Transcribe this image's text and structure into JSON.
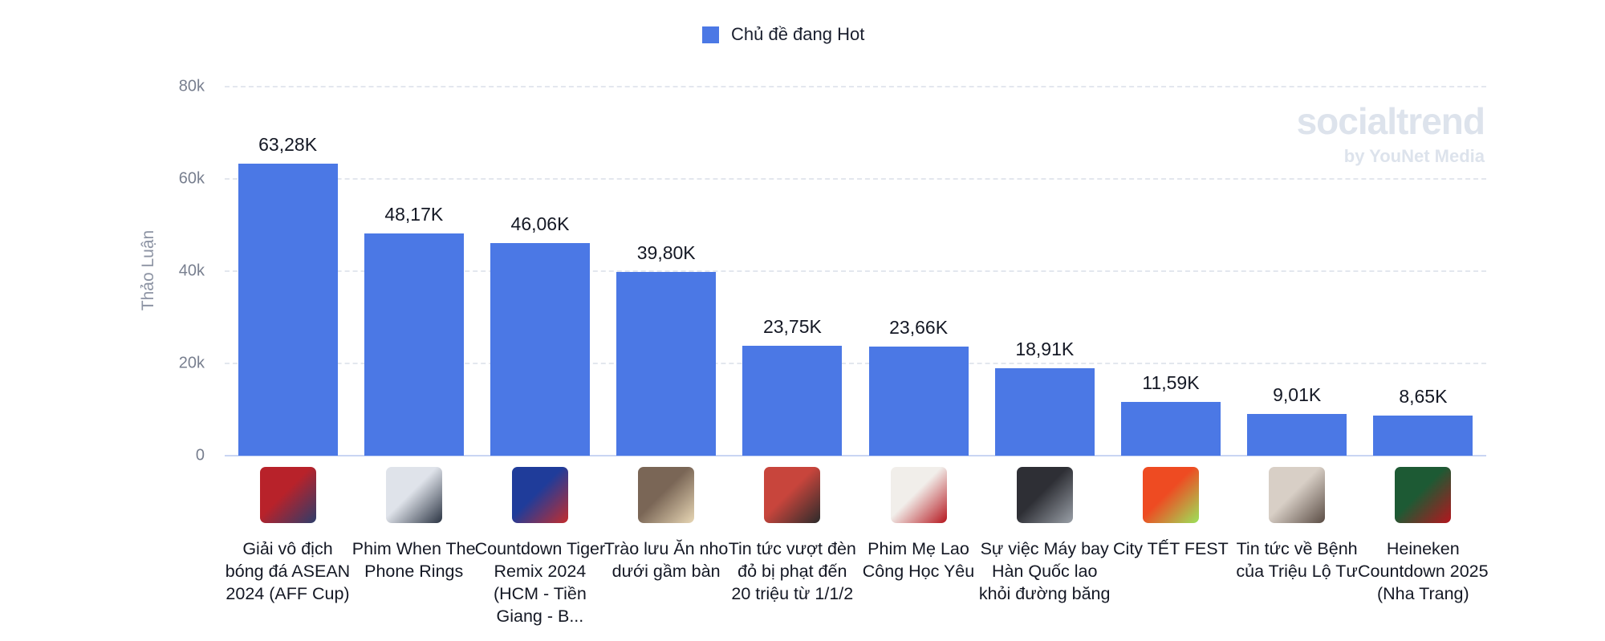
{
  "legend": {
    "label": "Chủ đề đang Hot",
    "color": "#4b78e5"
  },
  "watermark": {
    "brand": "socialtrend",
    "sub": "by YouNet Media"
  },
  "axis": {
    "y_title": "Thảo Luận",
    "ticks": [
      {
        "label": "80k",
        "value": 80000
      },
      {
        "label": "60k",
        "value": 60000
      },
      {
        "label": "40k",
        "value": 40000
      },
      {
        "label": "20k",
        "value": 20000
      },
      {
        "label": "0",
        "value": 0
      }
    ]
  },
  "bars": [
    {
      "label": "Giải vô địch bóng đá ASEAN 2024 (AFF Cup)",
      "value_label": "63,28K",
      "thumb": [
        "#b8222a",
        "#2d3d6b"
      ]
    },
    {
      "label": "Phim When The Phone Rings",
      "value_label": "48,17K",
      "thumb": [
        "#dfe3ea",
        "#2a3342"
      ]
    },
    {
      "label": "Countdown Tiger Remix 2024 (HCM - Tiền Giang - B...",
      "value_label": "46,06K",
      "thumb": [
        "#1f3c9a",
        "#c42d2d"
      ]
    },
    {
      "label": "Trào lưu Ăn nho dưới gầm bàn",
      "value_label": "39,80K",
      "thumb": [
        "#7a6656",
        "#e8d7b5"
      ]
    },
    {
      "label": "Tin tức vượt đèn đỏ bị phạt đến 20 triệu từ 1/1/2",
      "value_label": "23,75K",
      "thumb": [
        "#c8453c",
        "#2b2b2b"
      ]
    },
    {
      "label": "Phim Mẹ Lao Công Học Yêu",
      "value_label": "23,66K",
      "thumb": [
        "#f1eeea",
        "#b5161e"
      ]
    },
    {
      "label": "Sự việc Máy bay Hàn Quốc lao khỏi đường băng",
      "value_label": "18,91K",
      "thumb": [
        "#2e2f35",
        "#9aa0a8"
      ]
    },
    {
      "label": "City TẾT FEST",
      "value_label": "11,59K",
      "thumb": [
        "#ee4b22",
        "#9be35a"
      ]
    },
    {
      "label": "Tin tức về Bệnh của Triệu Lộ Tư",
      "value_label": "9,01K",
      "thumb": [
        "#d8cfc6",
        "#5a4c44"
      ]
    },
    {
      "label": "Heineken Countdown 2025 (Nha Trang)",
      "value_label": "8,65K",
      "thumb": [
        "#1d5a34",
        "#b5161e"
      ]
    }
  ],
  "chart_data": {
    "type": "bar",
    "title": "",
    "xlabel": "",
    "ylabel": "Thảo Luận",
    "ylim": [
      0,
      80000
    ],
    "grid": true,
    "legend_position": "top",
    "categories": [
      "Giải vô địch bóng đá ASEAN 2024 (AFF Cup)",
      "Phim When The Phone Rings",
      "Countdown Tiger Remix 2024 (HCM - Tiền Giang - B...",
      "Trào lưu Ăn nho dưới gầm bàn",
      "Tin tức vượt đèn đỏ bị phạt đến 20 triệu từ 1/1/2",
      "Phim Mẹ Lao Công Học Yêu",
      "Sự việc Máy bay Hàn Quốc lao khỏi đường băng",
      "City TẾT FEST",
      "Tin tức về Bệnh của Triệu Lộ Tư",
      "Heineken Countdown 2025 (Nha Trang)"
    ],
    "series": [
      {
        "name": "Chủ đề đang Hot",
        "color": "#4b78e5",
        "values": [
          63280,
          48170,
          46060,
          39800,
          23750,
          23660,
          18910,
          11590,
          9010,
          8650
        ]
      }
    ],
    "y_ticks": [
      "0",
      "20k",
      "40k",
      "60k",
      "80k"
    ]
  }
}
